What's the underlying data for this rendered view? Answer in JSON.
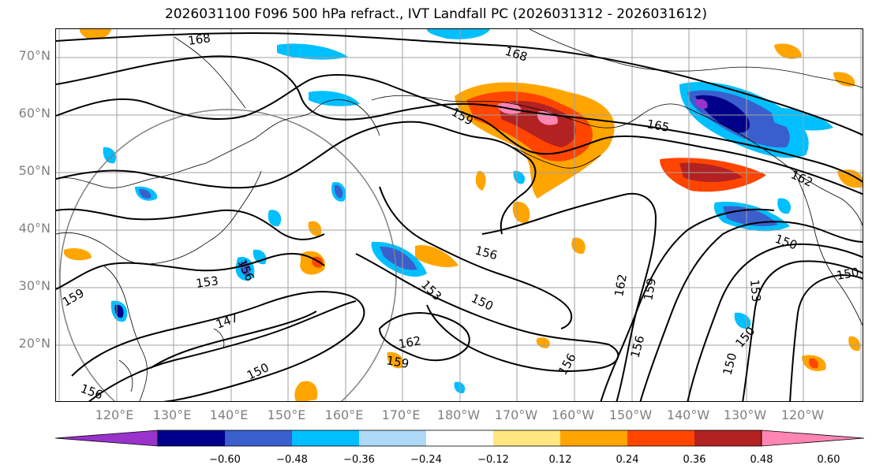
{
  "title": "2026031100 F096 500 hPa refract., IVT Landfall PC (2026031312 - 2026031612)",
  "lat_labels": [
    "70°N",
    "60°N",
    "50°N",
    "40°N",
    "30°N",
    "20°N"
  ],
  "lon_labels": [
    "120°E",
    "130°E",
    "140°E",
    "150°E",
    "160°E",
    "170°E",
    "180°W",
    "170°W",
    "160°W",
    "150°W",
    "140°W",
    "130°W",
    "120°W"
  ],
  "contour_labels": [
    "168",
    "168",
    "165",
    "162",
    "159",
    "159",
    "159",
    "159",
    "156",
    "156",
    "156",
    "156",
    "153",
    "153",
    "153",
    "150",
    "150",
    "150",
    "150",
    "150",
    "147",
    "162",
    "162",
    "156",
    "150"
  ],
  "colorbar": {
    "colors": [
      "#9933cc",
      "#00008b",
      "#3a5fcd",
      "#00bfff",
      "#add8f6",
      "#ffffff",
      "#ffe680",
      "#ffa500",
      "#ff4500",
      "#b22222",
      "#ff85b3"
    ],
    "tick_labels": [
      "−0.60",
      "−0.48",
      "−0.36",
      "−0.24",
      "−0.12",
      "0.12",
      "0.24",
      "0.36",
      "0.48",
      "0.60"
    ]
  },
  "colors": {
    "grid": "#a0a0a0",
    "contour": "#000000",
    "axis_label": "#808080"
  }
}
